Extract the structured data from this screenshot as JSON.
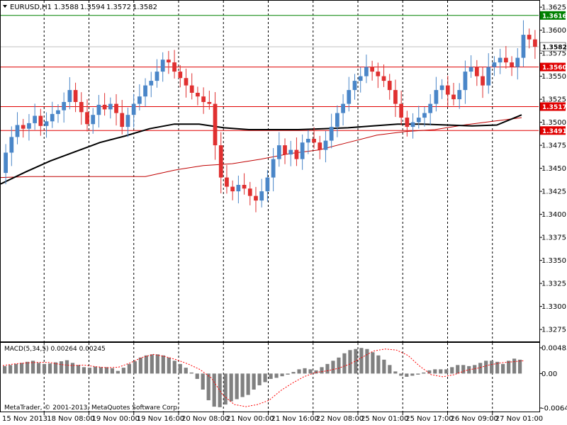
{
  "chart_data": {
    "type": "candlestick",
    "symbol_header": "EURUSD,H1",
    "ohlc_header": [
      "1.3588",
      "1.3594",
      "1.3572",
      "1.3582"
    ],
    "x_ticks": [
      "15 Nov 2013",
      "18 Nov 08:00",
      "19 Nov 00:00",
      "19 Nov 16:00",
      "20 Nov 08:00",
      "21 Nov 00:00",
      "21 Nov 16:00",
      "22 Nov 08:00",
      "25 Nov 01:00",
      "25 Nov 17:00",
      "26 Nov 09:00",
      "27 Nov 01:00"
    ],
    "y_ticks": [
      "1.3625",
      "1.3600",
      "1.3575",
      "1.3550",
      "1.3525",
      "1.3500",
      "1.3475",
      "1.3450",
      "1.3425",
      "1.3400",
      "1.3375",
      "1.3350",
      "1.3325",
      "1.3300",
      "1.3275"
    ],
    "ylim": [
      1.3262,
      1.3632
    ],
    "current_price": "1.3582",
    "levels": [
      {
        "label": "1.3616",
        "value": 1.3616,
        "color": "#008000"
      },
      {
        "label": "1.3560",
        "value": 1.356,
        "color": "#e00000"
      },
      {
        "label": "1.3517",
        "value": 1.3517,
        "color": "#e00000"
      },
      {
        "label": "1.3491",
        "value": 1.3491,
        "color": "#e00000"
      }
    ],
    "colors": {
      "bull": "#4a86c8",
      "bear": "#e03030",
      "ma_slow": "#000000",
      "ma_fast": "#c00000",
      "macd_hist": "#808080",
      "macd_signal": "#ff0000"
    },
    "series": [
      {
        "name": "close",
        "values": [
          1.3467,
          1.3484,
          1.3497,
          1.3493,
          1.3499,
          1.3507,
          1.3496,
          1.3501,
          1.3509,
          1.3513,
          1.3522,
          1.3535,
          1.3522,
          1.3511,
          1.3498,
          1.3508,
          1.3519,
          1.3514,
          1.352,
          1.351,
          1.3495,
          1.3508,
          1.352,
          1.3528,
          1.354,
          1.3545,
          1.3555,
          1.3568,
          1.3565,
          1.3555,
          1.3548,
          1.354,
          1.3532,
          1.3528,
          1.3522,
          1.352,
          1.3475,
          1.344,
          1.343,
          1.3425,
          1.3432,
          1.3428,
          1.342,
          1.3415,
          1.3425,
          1.344,
          1.346,
          1.3475,
          1.3465,
          1.347,
          1.346,
          1.3478,
          1.3482,
          1.3478,
          1.347,
          1.348,
          1.3495,
          1.351,
          1.352,
          1.3535,
          1.3545,
          1.355,
          1.356,
          1.3555,
          1.355,
          1.3545,
          1.3535,
          1.352,
          1.3505,
          1.3495,
          1.35,
          1.3505,
          1.351,
          1.352,
          1.3535,
          1.354,
          1.353,
          1.3525,
          1.3535,
          1.3555,
          1.356,
          1.355,
          1.354,
          1.356,
          1.3565,
          1.357,
          1.3565,
          1.356,
          1.357,
          1.3595,
          1.359,
          1.3582
        ]
      },
      {
        "name": "ma_slow",
        "values": [
          1.3433,
          1.3446,
          1.3458,
          1.3468,
          1.3478,
          1.3485,
          1.3493,
          1.3498,
          1.3498,
          1.3494,
          1.3492,
          1.3492,
          1.3492,
          1.3493,
          1.3494,
          1.3496,
          1.3498,
          1.3498,
          1.3497,
          1.3496,
          1.3497,
          1.3508
        ]
      },
      {
        "name": "ma_fast",
        "values": [
          1.344,
          1.3441,
          1.3441,
          1.3441,
          1.3441,
          1.3441,
          1.3448,
          1.3453,
          1.3455,
          1.346,
          1.3466,
          1.347,
          1.3478,
          1.3486,
          1.349,
          1.3492,
          1.3497,
          1.3501,
          1.3505
        ]
      }
    ],
    "indicator": {
      "label": "MACD(5,34,5) 0.00264 0.00245",
      "y_ticks": [
        "0.00483",
        "0.00",
        "-0.00645"
      ],
      "ylim": [
        -0.00645,
        0.00483
      ],
      "hist": [
        0.0014,
        0.0016,
        0.0018,
        0.002,
        0.0022,
        0.0024,
        0.002,
        0.0018,
        0.0019,
        0.0021,
        0.0023,
        0.0025,
        0.002,
        0.0016,
        0.0012,
        0.0011,
        0.0013,
        0.0012,
        0.0012,
        0.001,
        0.0005,
        0.0011,
        0.0018,
        0.0023,
        0.003,
        0.0034,
        0.0036,
        0.0036,
        0.0034,
        0.003,
        0.0024,
        0.0018,
        0.0011,
        0.0002,
        -0.001,
        -0.003,
        -0.005,
        -0.0062,
        -0.0063,
        -0.0058,
        -0.0052,
        -0.0048,
        -0.0044,
        -0.004,
        -0.003,
        -0.0022,
        -0.0016,
        -0.001,
        -0.0008,
        -0.0005,
        -0.0002,
        0.0003,
        0.0008,
        0.001,
        0.0008,
        0.0006,
        0.0012,
        0.0018,
        0.0024,
        0.003,
        0.0038,
        0.0044,
        0.0046,
        0.0048,
        0.0046,
        0.004,
        0.0034,
        0.0026,
        0.0016,
        0.0004,
        -0.0004,
        -0.0006,
        -0.0004,
        -0.0002,
        0.0002,
        0.0006,
        0.0008,
        0.0008,
        0.0008,
        0.0012,
        0.0016,
        0.0016,
        0.0014,
        0.0016,
        0.002,
        0.0024,
        0.0024,
        0.0022,
        0.0018,
        0.0024,
        0.0028,
        0.0026
      ],
      "signal": [
        0.0015,
        0.0018,
        0.002,
        0.0021,
        0.0021,
        0.0017,
        0.0015,
        0.0016,
        0.0013,
        0.0011,
        0.0012,
        0.002,
        0.003,
        0.0036,
        0.0032,
        0.0026,
        0.0018,
        0.0008,
        -0.0008,
        -0.004,
        -0.0058,
        -0.0062,
        -0.0058,
        -0.005,
        -0.0032,
        -0.0018,
        -0.0006,
        0.0002,
        0.0005,
        0.001,
        0.0018,
        0.003,
        0.0042,
        0.0046,
        0.0044,
        0.0034,
        0.0014,
        -0.0002,
        -0.0006,
        -0.0002,
        0.0006,
        0.001,
        0.0016,
        0.002,
        0.0022,
        0.0024
      ]
    },
    "copyright": "MetaTrader, © 2001-2013, MetaQuotes Software Corp."
  }
}
